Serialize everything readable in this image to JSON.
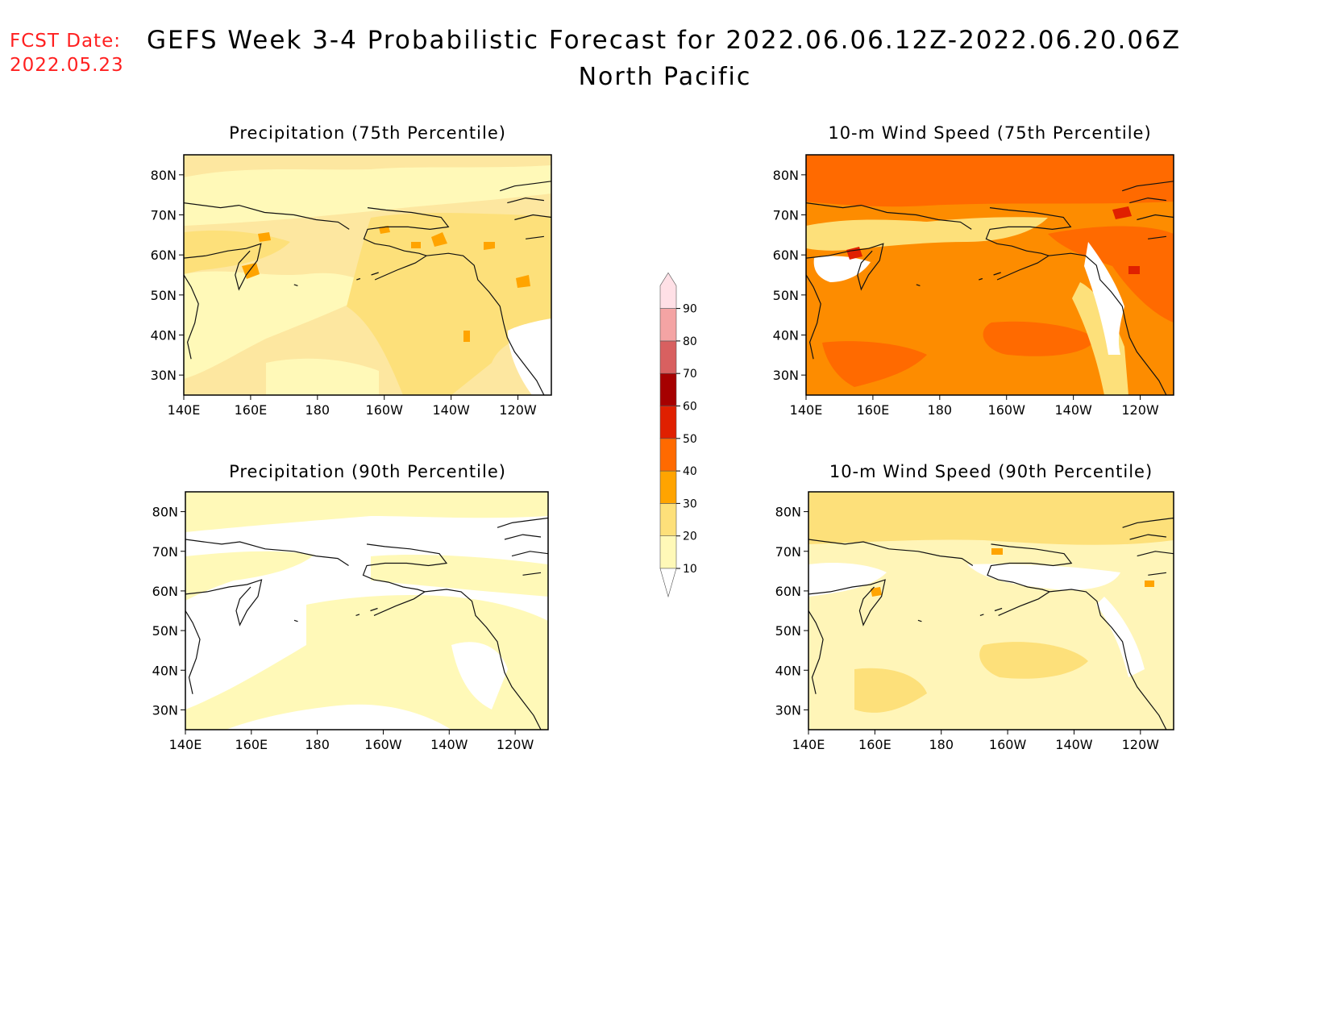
{
  "header": {
    "fcst_label": "FCST Date:",
    "fcst_date": "2022.05.23",
    "title": "GEFS Week 3-4 Probabilistic Forecast for 2022.06.06.12Z-2022.06.20.06Z",
    "subtitle": "North Pacific"
  },
  "panels": [
    {
      "title": "Precipitation (75th Percentile)",
      "base_color": "#fde7a0"
    },
    {
      "title": "10-m Wind Speed (75th Percentile)",
      "base_color": "#fd8c00"
    },
    {
      "title": "Precipitation (90th Percentile)",
      "base_color": "#ffffff"
    },
    {
      "title": "10-m Wind Speed (90th Percentile)",
      "base_color": "#fff5b8"
    }
  ],
  "axes": {
    "lat_labels": [
      "80N",
      "70N",
      "60N",
      "50N",
      "40N",
      "30N"
    ],
    "lon_labels": [
      "140E",
      "160E",
      "180",
      "160W",
      "140W",
      "120W"
    ]
  },
  "colorbar": {
    "levels": [
      "10",
      "20",
      "30",
      "40",
      "50",
      "60",
      "70",
      "80",
      "90"
    ],
    "colors": [
      "#fff9b8",
      "#fde07a",
      "#ffa400",
      "#ff6a00",
      "#e02000",
      "#a60000",
      "#d86060",
      "#f4a4a4",
      "#ffe0e6"
    ]
  },
  "chart_data": [
    {
      "type": "heatmap",
      "title": "Precipitation (75th Percentile)",
      "x_ticks": [
        "140E",
        "160E",
        "180",
        "160W",
        "140W",
        "120W"
      ],
      "y_ticks": [
        "80N",
        "70N",
        "60N",
        "50N",
        "40N",
        "30N"
      ],
      "scale_levels": [
        10,
        20,
        30,
        40,
        50,
        60,
        70,
        80,
        90
      ]
    },
    {
      "type": "heatmap",
      "title": "10-m Wind Speed (75th Percentile)",
      "x_ticks": [
        "140E",
        "160E",
        "180",
        "160W",
        "140W",
        "120W"
      ],
      "y_ticks": [
        "80N",
        "70N",
        "60N",
        "50N",
        "40N",
        "30N"
      ],
      "scale_levels": [
        10,
        20,
        30,
        40,
        50,
        60,
        70,
        80,
        90
      ]
    },
    {
      "type": "heatmap",
      "title": "Precipitation (90th Percentile)",
      "x_ticks": [
        "140E",
        "160E",
        "180",
        "160W",
        "140W",
        "120W"
      ],
      "y_ticks": [
        "80N",
        "70N",
        "60N",
        "50N",
        "40N",
        "30N"
      ],
      "scale_levels": [
        10,
        20,
        30,
        40,
        50,
        60,
        70,
        80,
        90
      ]
    },
    {
      "type": "heatmap",
      "title": "10-m Wind Speed (90th Percentile)",
      "x_ticks": [
        "140E",
        "160E",
        "180",
        "160W",
        "140W",
        "120W"
      ],
      "y_ticks": [
        "80N",
        "70N",
        "60N",
        "50N",
        "40N",
        "30N"
      ],
      "scale_levels": [
        10,
        20,
        30,
        40,
        50,
        60,
        70,
        80,
        90
      ]
    }
  ]
}
